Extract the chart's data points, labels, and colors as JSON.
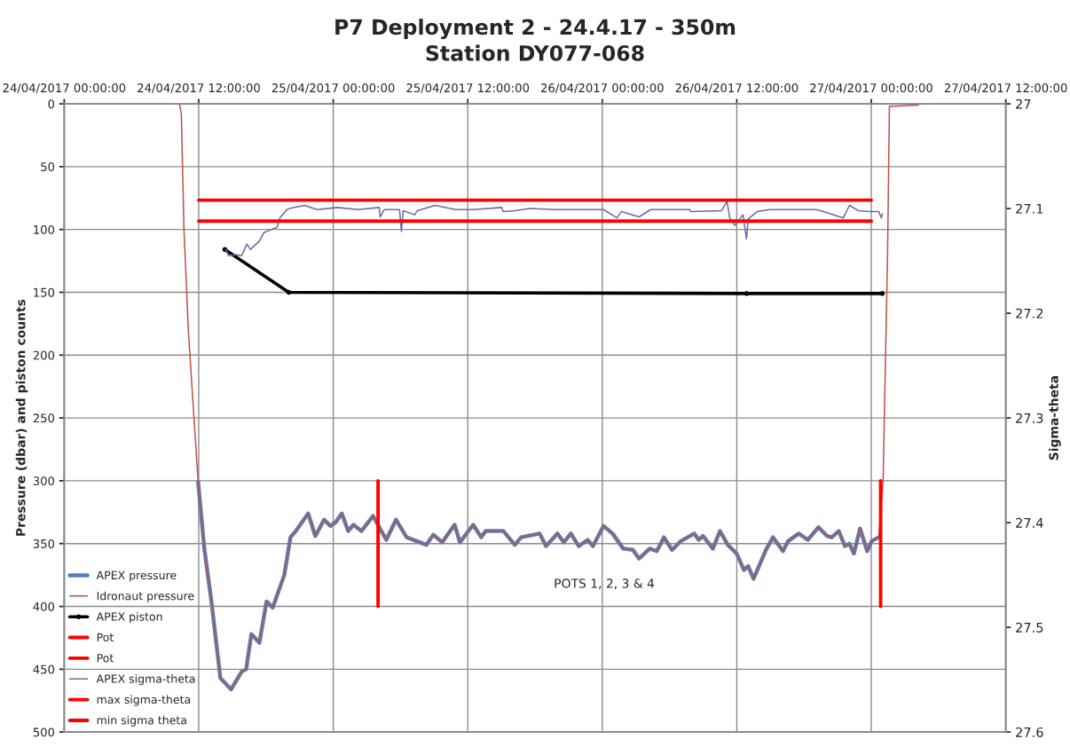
{
  "chart_data": {
    "type": "line",
    "title": "P7 Deployment 2 - 24.4.17 - 350m",
    "subtitle": "Station DY077-068",
    "ylabel": "Pressure (dbar) and piston counts",
    "y2label": "Sigma-theta",
    "annotations": [
      "POTS 1, 2, 3 & 4"
    ],
    "xlim": [
      "2017-04-24T00:00",
      "2017-04-27T12:00"
    ],
    "xticks": [
      {
        "value": "2017-04-24T00:00",
        "label": "24/04/2017 00:00:00"
      },
      {
        "value": "2017-04-24T12:00",
        "label": "24/04/2017 12:00:00"
      },
      {
        "value": "2017-04-25T00:00",
        "label": "25/04/2017 00:00:00"
      },
      {
        "value": "2017-04-25T12:00",
        "label": "25/04/2017 12:00:00"
      },
      {
        "value": "2017-04-26T00:00",
        "label": "26/04/2017 00:00:00"
      },
      {
        "value": "2017-04-26T12:00",
        "label": "26/04/2017 12:00:00"
      },
      {
        "value": "2017-04-27T00:00",
        "label": "27/04/2017 00:00:00"
      },
      {
        "value": "2017-04-27T12:00",
        "label": "27/04/2017 12:00:00"
      }
    ],
    "ylim": [
      500,
      0
    ],
    "yticks": [
      0,
      50,
      100,
      150,
      200,
      250,
      300,
      350,
      400,
      450,
      500
    ],
    "y2lim": [
      27.6,
      27.0
    ],
    "y2ticks": [
      27,
      27.1,
      27.2,
      27.3,
      27.4,
      27.5,
      27.6
    ],
    "grid": true,
    "legend": "bottom left",
    "series": [
      {
        "name": "APEX pressure",
        "color": "#4f81bd",
        "x": [
          "2017-04-24T11:57",
          "2017-04-24T12:30",
          "2017-04-24T13:08",
          "2017-04-24T13:56",
          "2017-04-24T14:53",
          "2017-04-24T15:50",
          "2017-04-24T16:14",
          "2017-04-24T16:42",
          "2017-04-24T17:25",
          "2017-04-24T18:03",
          "2017-04-24T18:36",
          "2017-04-24T19:38",
          "2017-04-24T20:11",
          "2017-04-24T20:40",
          "2017-04-24T21:46",
          "2017-04-24T22:24",
          "2017-04-24T23:11",
          "2017-04-24T23:45",
          "2017-04-25T00:13",
          "2017-04-25T00:46",
          "2017-04-25T01:20",
          "2017-04-25T01:48",
          "2017-04-25T02:31",
          "2017-04-25T03:33",
          "2017-04-25T04:44",
          "2017-04-25T05:36",
          "2017-04-25T06:33",
          "2017-04-25T08:18",
          "2017-04-25T08:56",
          "2017-04-25T09:43",
          "2017-04-25T10:50",
          "2017-04-25T11:18",
          "2017-04-25T12:29",
          "2017-04-25T13:12",
          "2017-04-25T13:36",
          "2017-04-25T15:11",
          "2017-04-25T16:12",
          "2017-04-25T16:46",
          "2017-04-25T18:25",
          "2017-04-25T18:59",
          "2017-04-25T20:00",
          "2017-04-25T20:34",
          "2017-04-25T21:12",
          "2017-04-25T21:54",
          "2017-04-25T22:42",
          "2017-04-25T23:10",
          "2017-04-26T00:07",
          "2017-04-26T00:55",
          "2017-04-26T01:52",
          "2017-04-26T02:44",
          "2017-04-26T03:17",
          "2017-04-26T04:14",
          "2017-04-26T04:52",
          "2017-04-26T05:30",
          "2017-04-26T06:13",
          "2017-04-26T07:01",
          "2017-04-26T08:12",
          "2017-04-26T08:36",
          "2017-04-26T08:59",
          "2017-04-26T09:52",
          "2017-04-26T10:30",
          "2017-04-26T11:12",
          "2017-04-26T12:00",
          "2017-04-26T12:38",
          "2017-04-26T13:01",
          "2017-04-26T13:30",
          "2017-04-26T14:36",
          "2017-04-26T15:14",
          "2017-04-26T16:07",
          "2017-04-26T16:35",
          "2017-04-26T17:32",
          "2017-04-26T18:20",
          "2017-04-26T19:17",
          "2017-04-26T20:04",
          "2017-04-26T20:28",
          "2017-04-26T21:06",
          "2017-04-26T21:39",
          "2017-04-26T22:03",
          "2017-04-26T22:27",
          "2017-04-26T23:00",
          "2017-04-26T23:38",
          "2017-04-27T00:02",
          "2017-04-27T00:40"
        ],
        "values": [
          301,
          354,
          396,
          457,
          466,
          452,
          450,
          422,
          429,
          396,
          401,
          375,
          345,
          340,
          326,
          344,
          331,
          336,
          333,
          326,
          340,
          335,
          340,
          328,
          347,
          331,
          345,
          351,
          343,
          349,
          335,
          349,
          335,
          345,
          340,
          340,
          351,
          345,
          342,
          352,
          342,
          349,
          342,
          352,
          347,
          352,
          336,
          342,
          354,
          355,
          362,
          354,
          356,
          345,
          355,
          348,
          342,
          347,
          344,
          354,
          340,
          351,
          358,
          371,
          368,
          378,
          355,
          345,
          356,
          348,
          342,
          347,
          337,
          344,
          345,
          340,
          352,
          350,
          358,
          338,
          356,
          348,
          345
        ]
      },
      {
        "name": "Idronaut pressure",
        "color": "#c0504d",
        "x": [
          "2017-04-24T10:17",
          "2017-04-24T10:27",
          "2017-04-24T10:41",
          "2017-04-24T11:05",
          "2017-04-24T11:57",
          "2017-04-24T12:30",
          "2017-04-24T13:08",
          "2017-04-24T13:56",
          "2017-04-24T14:53",
          "2017-04-24T15:50",
          "2017-04-24T16:14",
          "2017-04-24T16:42",
          "2017-04-24T17:25",
          "2017-04-24T18:03",
          "2017-04-24T18:36",
          "2017-04-24T19:38",
          "2017-04-24T20:11",
          "2017-04-24T20:40",
          "2017-04-24T21:46",
          "2017-04-24T22:24",
          "2017-04-24T23:11",
          "2017-04-24T23:45",
          "2017-04-25T00:13",
          "2017-04-25T00:46",
          "2017-04-25T01:20",
          "2017-04-25T01:48",
          "2017-04-25T02:31",
          "2017-04-25T03:33",
          "2017-04-25T04:44",
          "2017-04-25T05:36",
          "2017-04-25T06:33",
          "2017-04-25T08:18",
          "2017-04-25T08:56",
          "2017-04-25T09:43",
          "2017-04-25T10:50",
          "2017-04-25T11:18",
          "2017-04-25T12:29",
          "2017-04-25T13:12",
          "2017-04-25T13:36",
          "2017-04-25T15:11",
          "2017-04-25T16:12",
          "2017-04-25T16:46",
          "2017-04-25T18:25",
          "2017-04-25T18:59",
          "2017-04-25T20:00",
          "2017-04-25T20:34",
          "2017-04-25T21:12",
          "2017-04-25T21:54",
          "2017-04-25T22:42",
          "2017-04-25T23:10",
          "2017-04-26T00:07",
          "2017-04-26T00:55",
          "2017-04-26T01:52",
          "2017-04-26T02:44",
          "2017-04-26T03:17",
          "2017-04-26T04:14",
          "2017-04-26T04:52",
          "2017-04-26T05:30",
          "2017-04-26T06:13",
          "2017-04-26T07:01",
          "2017-04-26T08:12",
          "2017-04-26T08:36",
          "2017-04-26T08:59",
          "2017-04-26T09:52",
          "2017-04-26T10:30",
          "2017-04-26T11:12",
          "2017-04-26T12:00",
          "2017-04-26T12:38",
          "2017-04-26T13:01",
          "2017-04-26T13:30",
          "2017-04-26T14:36",
          "2017-04-26T15:14",
          "2017-04-26T16:07",
          "2017-04-26T16:35",
          "2017-04-26T17:32",
          "2017-04-26T18:20",
          "2017-04-26T19:17",
          "2017-04-26T20:04",
          "2017-04-26T20:28",
          "2017-04-26T21:06",
          "2017-04-26T21:39",
          "2017-04-26T22:03",
          "2017-04-26T22:27",
          "2017-04-26T23:00",
          "2017-04-26T23:38",
          "2017-04-27T00:02",
          "2017-04-27T00:40",
          "2017-04-27T01:03",
          "2017-04-27T01:27",
          "2017-04-27T01:37",
          "2017-04-27T04:13"
        ],
        "values": [
          0,
          8,
          100,
          182,
          301,
          354,
          396,
          457,
          466,
          452,
          450,
          422,
          429,
          396,
          401,
          375,
          345,
          340,
          326,
          344,
          331,
          336,
          333,
          326,
          340,
          335,
          340,
          328,
          347,
          331,
          345,
          351,
          343,
          349,
          335,
          349,
          335,
          345,
          340,
          340,
          351,
          345,
          342,
          352,
          342,
          349,
          342,
          352,
          347,
          352,
          336,
          342,
          354,
          355,
          362,
          354,
          356,
          345,
          355,
          348,
          342,
          347,
          344,
          354,
          340,
          351,
          358,
          371,
          368,
          378,
          355,
          345,
          356,
          348,
          342,
          347,
          337,
          344,
          345,
          340,
          352,
          350,
          358,
          338,
          356,
          348,
          345,
          301,
          121,
          2,
          1
        ]
      },
      {
        "name": "APEX piston",
        "color": "#000000",
        "marker": "circle",
        "x": [
          "2017-04-24T14:20",
          "2017-04-24T20:02",
          "2017-04-26T12:53",
          "2017-04-27T00:59"
        ],
        "values": [
          116,
          150,
          151,
          151
        ]
      },
      {
        "name": "Pot",
        "color": "#ff0000",
        "x": [
          "2017-04-25T04:00",
          "2017-04-25T04:00"
        ],
        "values": [
          300,
          400
        ]
      },
      {
        "name": "Pot",
        "color": "#ff0000",
        "x": [
          "2017-04-27T00:50",
          "2017-04-27T00:50"
        ],
        "values": [
          300,
          400
        ]
      },
      {
        "name": "APEX sigma-theta",
        "color": "#7464a4",
        "axis": "y2",
        "x": [
          "2017-04-24T14:24",
          "2017-04-24T14:39",
          "2017-04-24T15:17",
          "2017-04-24T15:50",
          "2017-04-24T16:18",
          "2017-04-24T16:37",
          "2017-04-24T17:01",
          "2017-04-24T17:25",
          "2017-04-24T17:49",
          "2017-04-24T18:27",
          "2017-04-24T19:00",
          "2017-04-24T19:14",
          "2017-04-24T19:52",
          "2017-04-24T20:25",
          "2017-04-24T21:27",
          "2017-04-24T22:33",
          "2017-04-25T00:23",
          "2017-04-25T02:12",
          "2017-04-25T04:06",
          "2017-04-25T04:11",
          "2017-04-25T04:34",
          "2017-04-25T05:55",
          "2017-04-25T06:05",
          "2017-04-25T06:14",
          "2017-04-25T07:16",
          "2017-04-25T07:30",
          "2017-04-25T09:05",
          "2017-04-25T10:54",
          "2017-04-25T12:29",
          "2017-04-25T15:01",
          "2017-04-25T15:11",
          "2017-04-25T16:12",
          "2017-04-25T17:33",
          "2017-04-25T19:56",
          "2017-04-26T00:07",
          "2017-04-26T01:19",
          "2017-04-26T01:42",
          "2017-04-26T03:17",
          "2017-04-26T04:19",
          "2017-04-26T07:48",
          "2017-04-26T07:53",
          "2017-04-26T10:39",
          "2017-04-26T11:08",
          "2017-04-26T11:22",
          "2017-04-26T11:50",
          "2017-04-26T12:33",
          "2017-04-26T12:52",
          "2017-04-26T13:01",
          "2017-04-26T13:49",
          "2017-04-26T14:55",
          "2017-04-26T19:07",
          "2017-04-26T19:45",
          "2017-04-26T21:30",
          "2017-04-26T22:03",
          "2017-04-26T22:50",
          "2017-04-26T23:52",
          "2017-04-27T00:40",
          "2017-04-27T00:54",
          "2017-04-27T00:59"
        ],
        "values": [
          27.139,
          27.145,
          27.144,
          27.145,
          27.134,
          27.139,
          27.135,
          27.131,
          27.123,
          27.12,
          27.118,
          27.109,
          27.101,
          27.099,
          27.097,
          27.101,
          27.099,
          27.101,
          27.099,
          27.108,
          27.101,
          27.101,
          27.122,
          27.102,
          27.106,
          27.102,
          27.097,
          27.101,
          27.101,
          27.099,
          27.103,
          27.102,
          27.1,
          27.101,
          27.101,
          27.109,
          27.103,
          27.108,
          27.101,
          27.101,
          27.103,
          27.102,
          27.093,
          27.109,
          27.116,
          27.106,
          27.129,
          27.11,
          27.103,
          27.101,
          27.101,
          27.103,
          27.109,
          27.097,
          27.102,
          27.103,
          27.103,
          27.109,
          27.105
        ]
      },
      {
        "name": "max sigma-theta",
        "color": "#ff0000",
        "axis": "y2",
        "x": [
          "2017-04-24T12:00",
          "2017-04-27T00:00"
        ],
        "values": [
          27.112,
          27.112
        ]
      },
      {
        "name": "min sigma theta",
        "color": "#ff0000",
        "axis": "y2",
        "x": [
          "2017-04-24T12:00",
          "2017-04-27T00:00"
        ],
        "values": [
          27.092,
          27.092
        ]
      }
    ]
  }
}
